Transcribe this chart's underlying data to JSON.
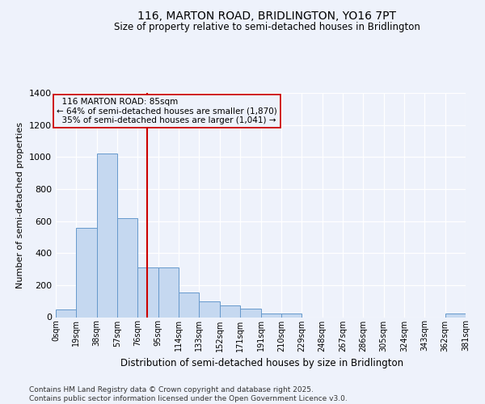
{
  "title": "116, MARTON ROAD, BRIDLINGTON, YO16 7PT",
  "subtitle": "Size of property relative to semi-detached houses in Bridlington",
  "xlabel": "Distribution of semi-detached houses by size in Bridlington",
  "ylabel": "Number of semi-detached properties",
  "property_sqm": 85,
  "property_label": "116 MARTON ROAD: 85sqm",
  "pct_smaller": 64,
  "pct_larger": 35,
  "count_smaller": 1870,
  "count_larger": 1041,
  "bin_labels": [
    "0sqm",
    "19sqm",
    "38sqm",
    "57sqm",
    "76sqm",
    "95sqm",
    "114sqm",
    "133sqm",
    "152sqm",
    "171sqm",
    "191sqm",
    "210sqm",
    "229sqm",
    "248sqm",
    "267sqm",
    "286sqm",
    "305sqm",
    "324sqm",
    "343sqm",
    "362sqm",
    "381sqm"
  ],
  "bar_heights": [
    50,
    560,
    1020,
    620,
    310,
    310,
    155,
    100,
    75,
    55,
    25,
    25,
    0,
    0,
    0,
    0,
    0,
    0,
    0,
    25
  ],
  "bar_color": "#c5d8f0",
  "bar_edge_color": "#6699cc",
  "vline_color": "#cc0000",
  "vline_x": 4.47,
  "ylim_max": 1400,
  "yticks": [
    0,
    200,
    400,
    600,
    800,
    1000,
    1200,
    1400
  ],
  "bg_color": "#eef2fb",
  "grid_color": "#ffffff",
  "footnote_line1": "Contains HM Land Registry data © Crown copyright and database right 2025.",
  "footnote_line2": "Contains public sector information licensed under the Open Government Licence v3.0."
}
